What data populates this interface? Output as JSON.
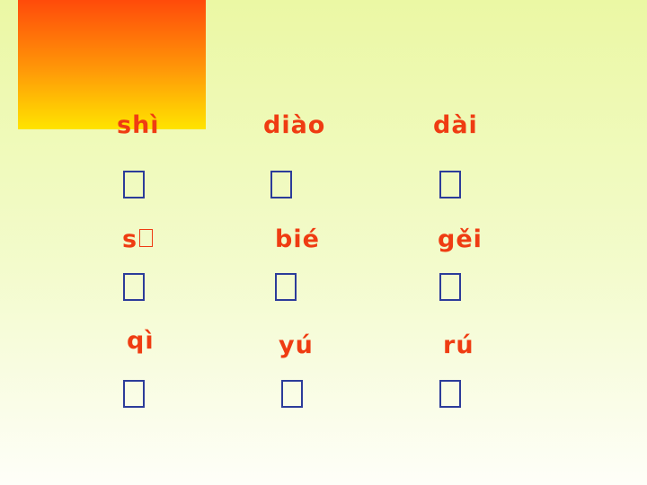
{
  "slide": {
    "colors": {
      "pinyin": "#ef3c12",
      "glyph_box": "#2c3c9a",
      "decor_top": "#ff4a0a",
      "decor_bottom": "#ffe400",
      "background_top": "#ebf8a4",
      "background_bottom": "#fefef8"
    },
    "rows": [
      {
        "items": [
          {
            "pinyin": "shì"
          },
          {
            "pinyin": "diào"
          },
          {
            "pinyin": "dài"
          }
        ]
      },
      {
        "items": [
          {
            "pinyin": "s"
          },
          {
            "pinyin": "bié"
          },
          {
            "pinyin": "gěi"
          }
        ]
      },
      {
        "items": [
          {
            "pinyin": "qì"
          },
          {
            "pinyin": "yú"
          },
          {
            "pinyin": "rú"
          }
        ]
      }
    ]
  }
}
